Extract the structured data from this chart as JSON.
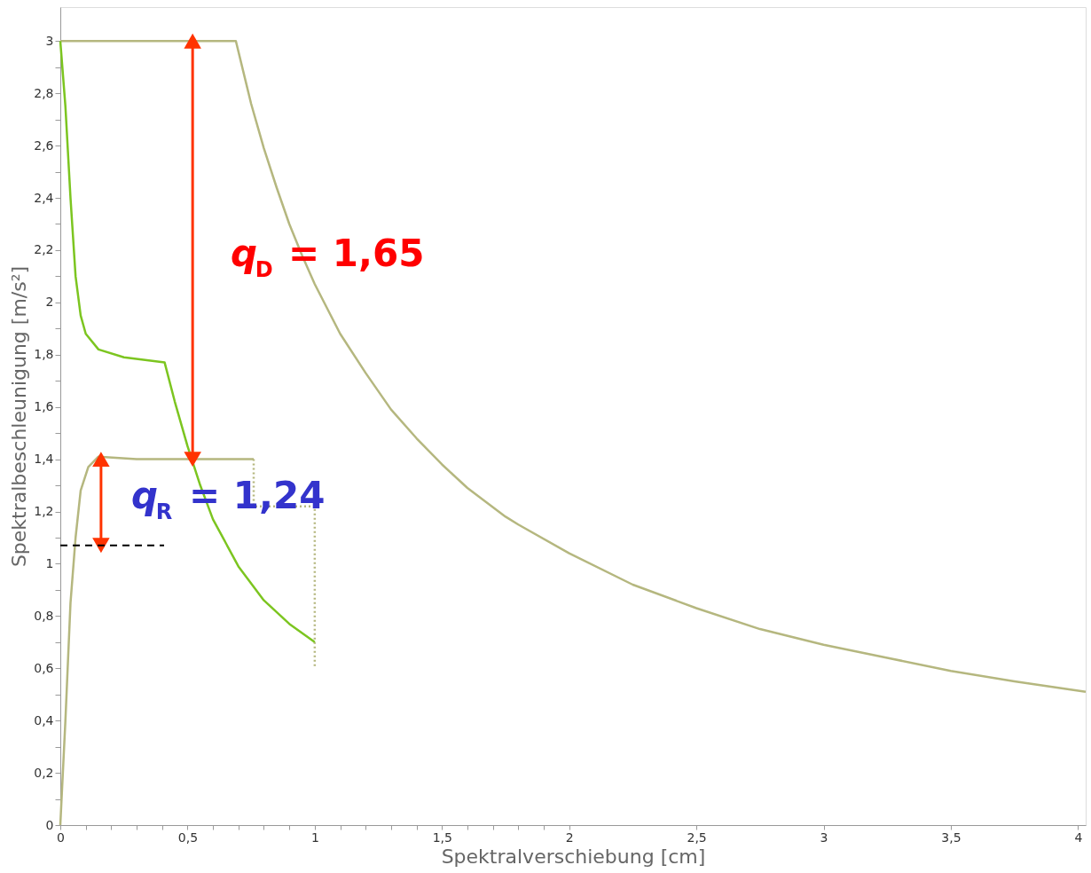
{
  "chart_data": {
    "type": "line",
    "xlabel": "Spektralverschiebung [cm]",
    "ylabel": "Spektralbeschleunigung [m/s²]",
    "xlim": [
      0,
      4.03
    ],
    "ylim": [
      0,
      3.13
    ],
    "xticks": [
      0,
      {
        "value": 0.1,
        "label": null
      },
      {
        "value": 0.2,
        "label": null
      },
      {
        "value": 0.3,
        "label": null
      },
      {
        "value": 0.4,
        "label": null
      },
      {
        "value": 0.5,
        "label": "0,5"
      },
      {
        "value": 0.6,
        "label": null
      },
      {
        "value": 0.7,
        "label": null
      },
      {
        "value": 0.8,
        "label": null
      },
      {
        "value": 0.9,
        "label": null
      },
      1,
      {
        "value": 1.1,
        "label": null
      },
      {
        "value": 1.2,
        "label": null
      },
      {
        "value": 1.3,
        "label": null
      },
      {
        "value": 1.4,
        "label": null
      },
      {
        "value": 1.5,
        "label": "1,5"
      },
      {
        "value": 1.6,
        "label": null
      },
      {
        "value": 1.7,
        "label": null
      },
      {
        "value": 1.8,
        "label": null
      },
      {
        "value": 1.9,
        "label": null
      },
      2,
      {
        "value": 2.5,
        "label": "2,5"
      },
      3,
      {
        "value": 3.5,
        "label": "3,5"
      },
      4
    ],
    "yticks": [
      0,
      {
        "value": 0.1,
        "label": null
      },
      {
        "value": 0.2,
        "label": "0,2"
      },
      {
        "value": 0.3,
        "label": null
      },
      {
        "value": 0.4,
        "label": "0,4"
      },
      {
        "value": 0.5,
        "label": null
      },
      {
        "value": 0.6,
        "label": "0,6"
      },
      {
        "value": 0.7,
        "label": null
      },
      {
        "value": 0.8,
        "label": "0,8"
      },
      {
        "value": 0.9,
        "label": null
      },
      1,
      {
        "value": 1.1,
        "label": null
      },
      {
        "value": 1.2,
        "label": "1,2"
      },
      {
        "value": 1.3,
        "label": null
      },
      {
        "value": 1.4,
        "label": "1,4"
      },
      {
        "value": 1.5,
        "label": null
      },
      {
        "value": 1.6,
        "label": "1,6"
      },
      {
        "value": 1.7,
        "label": null
      },
      {
        "value": 1.8,
        "label": "1,8"
      },
      {
        "value": 1.9,
        "label": null
      },
      2,
      {
        "value": 2.1,
        "label": null
      },
      {
        "value": 2.2,
        "label": "2,2"
      },
      {
        "value": 2.3,
        "label": null
      },
      {
        "value": 2.4,
        "label": "2,4"
      },
      {
        "value": 2.5,
        "label": null
      },
      {
        "value": 2.6,
        "label": "2,6"
      },
      {
        "value": 2.7,
        "label": null
      },
      {
        "value": 2.8,
        "label": "2,8"
      },
      {
        "value": 2.9,
        "label": null
      },
      3
    ],
    "grid": false,
    "series": [
      {
        "color": "#b5b77f",
        "line_style": "solid",
        "x": [
          0,
          0.69,
          0.72,
          0.75,
          0.8,
          0.85,
          0.9,
          0.95,
          1.0,
          1.1,
          1.2,
          1.3,
          1.4,
          1.5,
          1.6,
          1.75,
          1.8,
          2.0,
          2.25,
          2.5,
          2.75,
          3.0,
          3.25,
          3.5,
          3.75,
          4.03
        ],
        "values": [
          3.0,
          3.0,
          2.88,
          2.76,
          2.59,
          2.44,
          2.3,
          2.18,
          2.07,
          1.88,
          1.73,
          1.59,
          1.48,
          1.38,
          1.29,
          1.18,
          1.15,
          1.04,
          0.92,
          0.83,
          0.75,
          0.69,
          0.64,
          0.59,
          0.55,
          0.51
        ]
      },
      {
        "color": "#b5b77f",
        "line_style": "solid",
        "x": [
          0,
          0.02,
          0.04,
          0.06,
          0.08,
          0.11,
          0.15,
          0.3,
          0.5,
          0.76
        ],
        "values": [
          0,
          0.4,
          0.85,
          1.1,
          1.28,
          1.37,
          1.41,
          1.4,
          1.4,
          1.4
        ]
      },
      {
        "color": "#b5b77f",
        "line_style": "dotted",
        "x": [
          0.76,
          0.76,
          1.0,
          1.0
        ],
        "values": [
          1.4,
          1.22,
          1.22,
          0.6
        ]
      },
      {
        "color": "#7cc520",
        "line_style": "solid",
        "x": [
          0,
          0.02,
          0.04,
          0.06,
          0.08,
          0.1,
          0.15,
          0.25,
          0.41,
          0.45,
          0.5,
          0.55,
          0.6,
          0.7,
          0.8,
          0.9,
          1.0
        ],
        "values": [
          3.0,
          2.75,
          2.4,
          2.1,
          1.95,
          1.88,
          1.82,
          1.79,
          1.77,
          1.62,
          1.45,
          1.3,
          1.17,
          0.99,
          0.86,
          0.77,
          0.7
        ]
      },
      {
        "color": "#ff3300",
        "line_style": "solid",
        "marker": "triangle",
        "x": [
          0.52,
          0.52
        ],
        "values": [
          3.0,
          1.4
        ]
      },
      {
        "color": "#ff3300",
        "line_style": "solid",
        "marker": "triangle",
        "x": [
          0.16,
          0.16
        ],
        "values": [
          1.4,
          1.07
        ]
      }
    ],
    "ref_lines": [
      {
        "axis": "y",
        "value": 1.07,
        "color": "#000000",
        "line_style": "dashed"
      }
    ],
    "annotations": [
      "q$_{D}$ = 1,65",
      "q$_{R}$ = 1,24"
    ]
  }
}
